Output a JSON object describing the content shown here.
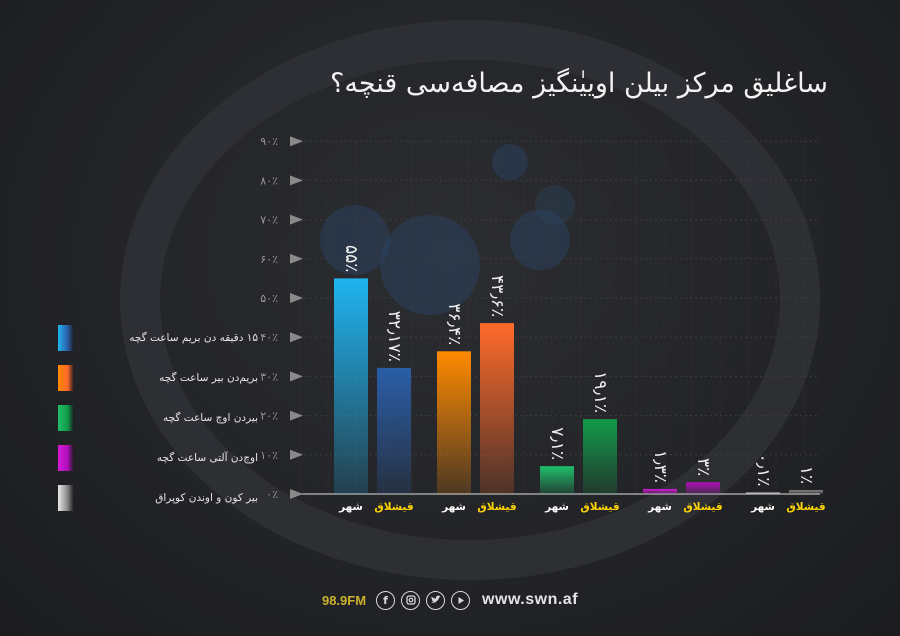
{
  "title": "ساغلیق مرکز بیلن اوییٰنگیز مصافه‌سی قنچه؟",
  "chart_data": {
    "type": "bar",
    "ylim": [
      0,
      90
    ],
    "ytick_values": [
      0,
      10,
      20,
      30,
      40,
      50,
      60,
      70,
      80,
      90
    ],
    "ytick_labels": [
      "۰٪",
      "۱۰٪",
      "۲۰٪",
      "۳۰٪",
      "۴۰٪",
      "۵۰٪",
      "۶۰٪",
      "۷۰٪",
      "۸۰٪",
      "۹۰٪"
    ],
    "grid": true,
    "legend_position": "left",
    "bars": [
      {
        "category": "شهر",
        "series": 0,
        "value": 55,
        "label": "۵۵٪"
      },
      {
        "category": "قیشلاق",
        "series": 0,
        "value": 32.17,
        "label": "۳۲٫۱۷٪"
      },
      {
        "category": "شهر",
        "series": 1,
        "value": 36.4,
        "label": "۳۶٫۴٪"
      },
      {
        "category": "قیشلاق",
        "series": 1,
        "value": 43.6,
        "label": "۴۳٫۶٪"
      },
      {
        "category": "شهر",
        "series": 2,
        "value": 7.1,
        "label": "۷٫۱٪"
      },
      {
        "category": "قیشلاق",
        "series": 2,
        "value": 19.1,
        "label": "۱۹٫۱٪"
      },
      {
        "category": "شهر",
        "series": 3,
        "value": 1.3,
        "label": "۱٫۳٪"
      },
      {
        "category": "قیشلاق",
        "series": 3,
        "value": 3,
        "label": "۳٪"
      },
      {
        "category": "شهر",
        "series": 4,
        "value": 0.1,
        "label": "۰٫۱٪"
      },
      {
        "category": "قیشلاق",
        "series": 4,
        "value": 1,
        "label": "۱٪"
      }
    ],
    "series": [
      {
        "name": "۱۵ دقیقه دن بریم ساعت گچه",
        "color": "#1fb4f0",
        "color_alt": "#2a5ea8"
      },
      {
        "name": "بریم‌دن بیر ساعت گچه",
        "color": "#ff8a00",
        "color_alt": "#ff6a2a"
      },
      {
        "name": "بیردن اوچ ساعت گچه",
        "color": "#1fbf6a",
        "color_alt": "#129a4a"
      },
      {
        "name": "اوچ‌دن آلتی ساعت گچه",
        "color": "#d41ad8",
        "color_alt": "#b010b8"
      },
      {
        "name": "بیر کون و اوندن کوپراق",
        "color": "#e8e8e8",
        "color_alt": "#888888"
      }
    ],
    "category_colors": {
      "شهر": "#ffffff",
      "قیشلاق": "#ffd400"
    }
  },
  "footer": {
    "frequency": "98.9FM",
    "icons": [
      "facebook-icon",
      "instagram-icon",
      "twitter-icon",
      "youtube-icon"
    ],
    "website": "www.swn.af"
  },
  "colors": {
    "background": "#25262a",
    "grid": "#3c3d42",
    "tick": "#9a9a9a"
  }
}
